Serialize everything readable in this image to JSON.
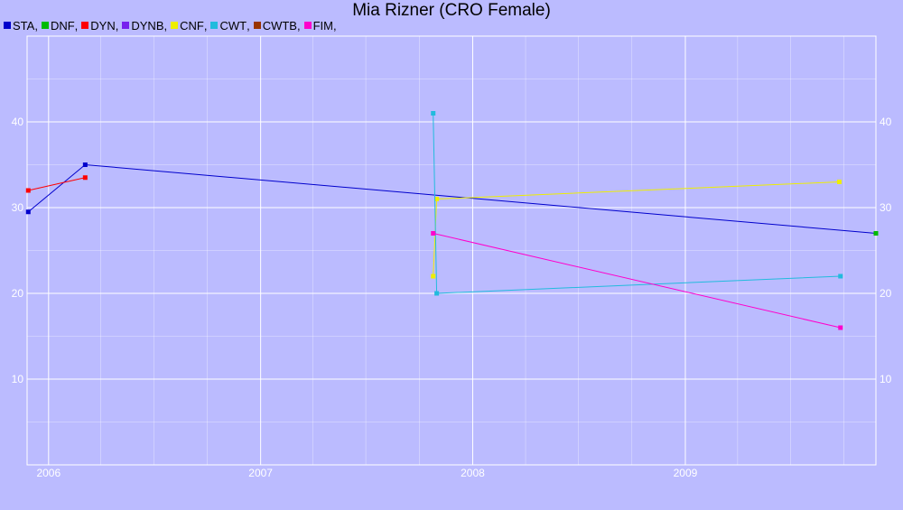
{
  "chart_data": {
    "type": "line",
    "title": "Mia Rizner (CRO Female)",
    "xlabel": "",
    "ylabel": "",
    "xlim": [
      "2005-11-25",
      "2009-11-25"
    ],
    "ylim": [
      0,
      50
    ],
    "x_ticks": [
      "2006",
      "2007",
      "2008",
      "2009"
    ],
    "y_ticks": [
      10,
      20,
      30,
      40
    ],
    "grid": true,
    "legend": "top-left",
    "series": [
      {
        "name": "STA",
        "color": "#0000cc",
        "points": [
          {
            "x": "2005-11-27",
            "y": 29.5
          },
          {
            "x": "2006-03-05",
            "y": 35
          },
          {
            "x": "2009-11-25",
            "y": 27
          }
        ]
      },
      {
        "name": "DNF",
        "color": "#00bb00",
        "points": [
          {
            "x": "2009-11-25",
            "y": 27
          }
        ]
      },
      {
        "name": "DYN",
        "color": "#ff0000",
        "points": [
          {
            "x": "2005-11-27",
            "y": 32
          },
          {
            "x": "2006-03-05",
            "y": 33.5
          }
        ]
      },
      {
        "name": "DYNB",
        "color": "#7722ee",
        "points": []
      },
      {
        "name": "CNF",
        "color": "#eeee00",
        "points": [
          {
            "x": "2007-10-25",
            "y": 22
          },
          {
            "x": "2007-10-31",
            "y": 31
          },
          {
            "x": "2009-09-23",
            "y": 33
          }
        ]
      },
      {
        "name": "CWT",
        "color": "#22bbdd",
        "points": [
          {
            "x": "2007-10-25",
            "y": 41
          },
          {
            "x": "2007-10-31",
            "y": 20
          },
          {
            "x": "2009-09-25",
            "y": 22
          }
        ]
      },
      {
        "name": "CWTB",
        "color": "#993300",
        "points": []
      },
      {
        "name": "FIM",
        "color": "#ff00cc",
        "points": [
          {
            "x": "2007-10-25",
            "y": 27
          },
          {
            "x": "2009-09-25",
            "y": 16
          }
        ]
      }
    ]
  }
}
